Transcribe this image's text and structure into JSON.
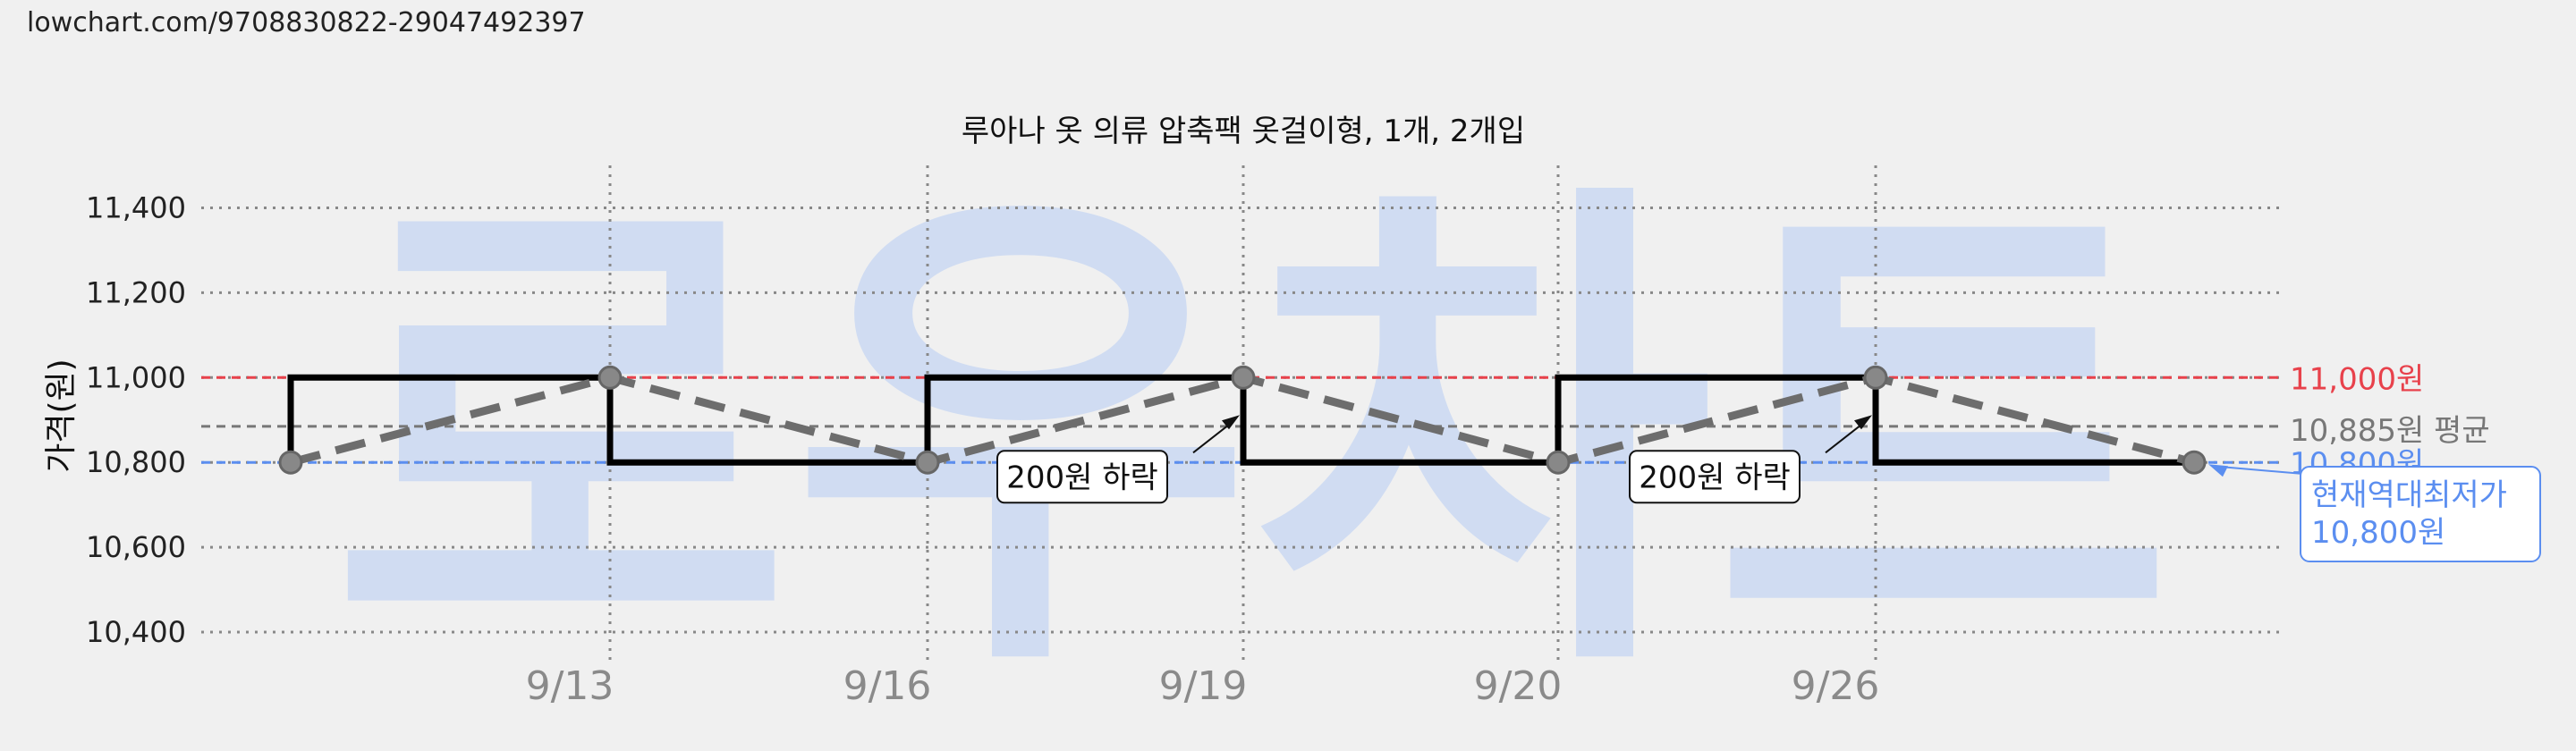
{
  "url": "lowchart.com/9708830822-29047492397",
  "colors": {
    "max": "#e8414b",
    "min": "#5b8ef0",
    "avg": "#777777",
    "price": "#000000",
    "trend": "#6d6d6d",
    "watermark": "#c9d8f3"
  },
  "chart_data": {
    "type": "line",
    "title": "루아나 옷 의류 압축팩 옷걸이형, 1개, 2개입",
    "ylabel": "가격(원)",
    "watermark": "로우차트",
    "ylim": [
      10320,
      11500
    ],
    "yticks": [
      10400,
      10600,
      10800,
      11000,
      11200,
      11400
    ],
    "ytick_labels": [
      "10,400",
      "10,600",
      "10,800",
      "11,000",
      "11,200",
      "11,400"
    ],
    "x_labels": [
      "9/13",
      "9/16",
      "9/19",
      "9/20",
      "9/26"
    ],
    "points": [
      {
        "label": "",
        "price": 10800
      },
      {
        "label": "9/13",
        "price": 11000
      },
      {
        "label": "9/16",
        "price": 10800
      },
      {
        "label": "9/19",
        "price": 11000
      },
      {
        "label": "9/20",
        "price": 10800
      },
      {
        "label": "9/26",
        "price": 11000
      },
      {
        "label": "",
        "price": 10800
      }
    ],
    "step_prices": [
      11000,
      10800,
      11000,
      10800,
      11000,
      10800
    ],
    "reference_lines": [
      {
        "key": "max",
        "value": 11000,
        "label": "11,000원"
      },
      {
        "key": "avg",
        "value": 10885,
        "label": "10,885원 평균"
      },
      {
        "key": "min",
        "value": 10800,
        "label": "10,800원"
      }
    ],
    "annotations": [
      {
        "text": "200원 하락",
        "point": 3
      },
      {
        "text": "200원 하락",
        "point": 5
      }
    ],
    "callout": {
      "line1": "현재역대최저가",
      "line2": "10,800원",
      "point": 6
    },
    "grid": true
  }
}
